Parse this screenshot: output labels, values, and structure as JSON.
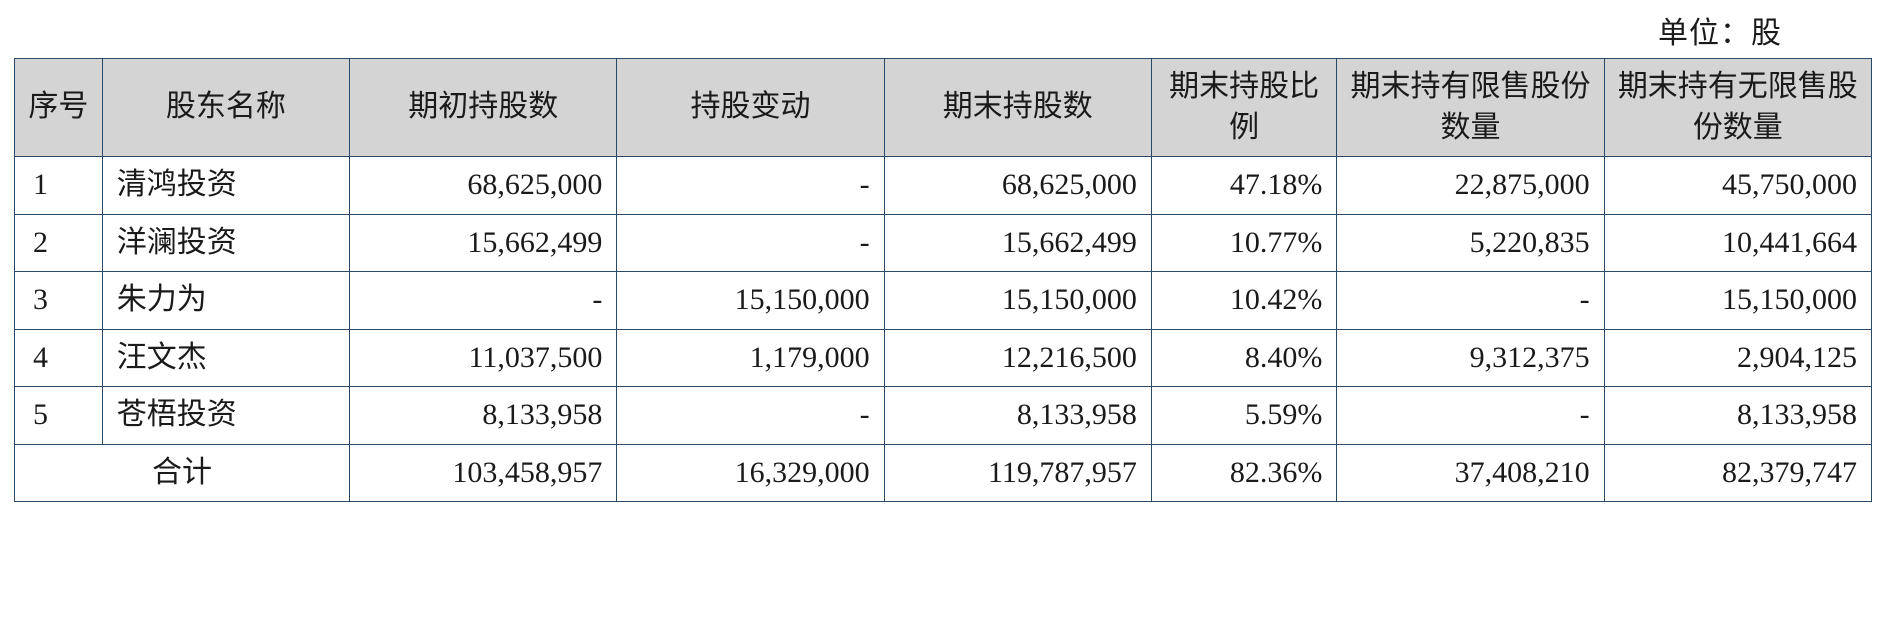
{
  "unit_label": "单位：股",
  "table": {
    "columns": [
      "序号",
      "股东名称",
      "期初持股数",
      "持股变动",
      "期末持股数",
      "期末持股比例",
      "期末持有限售股份数量",
      "期末持有无限售股份数量"
    ],
    "rows": [
      {
        "idx": "1",
        "name": "清鸿投资",
        "start": "68,625,000",
        "change": "-",
        "end": "68,625,000",
        "pct": "47.18%",
        "restricted": "22,875,000",
        "unrestricted": "45,750,000"
      },
      {
        "idx": "2",
        "name": "洋澜投资",
        "start": "15,662,499",
        "change": "-",
        "end": "15,662,499",
        "pct": "10.77%",
        "restricted": "5,220,835",
        "unrestricted": "10,441,664"
      },
      {
        "idx": "3",
        "name": "朱力为",
        "start": "-",
        "change": "15,150,000",
        "end": "15,150,000",
        "pct": "10.42%",
        "restricted": "-",
        "unrestricted": "15,150,000"
      },
      {
        "idx": "4",
        "name": "汪文杰",
        "start": "11,037,500",
        "change": "1,179,000",
        "end": "12,216,500",
        "pct": "8.40%",
        "restricted": "9,312,375",
        "unrestricted": "2,904,125"
      },
      {
        "idx": "5",
        "name": "苍梧投资",
        "start": "8,133,958",
        "change": "-",
        "end": "8,133,958",
        "pct": "5.59%",
        "restricted": "-",
        "unrestricted": "8,133,958"
      }
    ],
    "total": {
      "label": "合计",
      "start": "103,458,957",
      "change": "16,329,000",
      "end": "119,787,957",
      "pct": "82.36%",
      "restricted": "37,408,210",
      "unrestricted": "82,379,747"
    },
    "border_color": "#2a4a6a",
    "header_bg": "#d4d4d4",
    "text_color": "#1a1a1a",
    "font_size_pt": 22
  }
}
